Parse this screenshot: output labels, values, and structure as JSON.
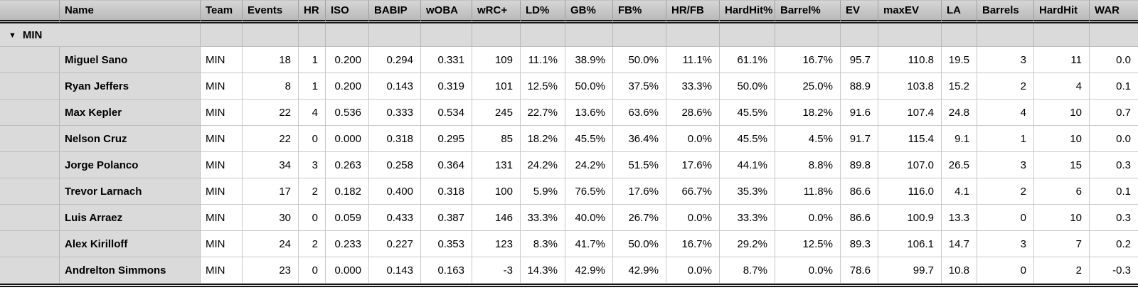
{
  "colors": {
    "header_gradient_top": "#d6d6d6",
    "header_gradient_bottom": "#b9b9b9",
    "row_header_bg": "#dadada",
    "grid_line": "#c8c8c8",
    "heavy_line": "#141414"
  },
  "table": {
    "columns": [
      "Name",
      "Team",
      "Events",
      "HR",
      "ISO",
      "BABIP",
      "wOBA",
      "wRC+",
      "LD%",
      "GB%",
      "FB%",
      "HR/FB",
      "HardHit%",
      "Barrel%",
      "EV",
      "maxEV",
      "LA",
      "Barrels",
      "HardHit",
      "WAR"
    ],
    "group": {
      "icon": "▼",
      "label": "MIN"
    },
    "rows": [
      {
        "name": "Miguel Sano",
        "team": "MIN",
        "values": [
          "18",
          "1",
          "0.200",
          "0.294",
          "0.331",
          "109",
          "11.1%",
          "38.9%",
          "50.0%",
          "11.1%",
          "61.1%",
          "16.7%",
          "95.7",
          "110.8",
          "19.5",
          "3",
          "11",
          "0.0"
        ]
      },
      {
        "name": "Ryan Jeffers",
        "team": "MIN",
        "values": [
          "8",
          "1",
          "0.200",
          "0.143",
          "0.319",
          "101",
          "12.5%",
          "50.0%",
          "37.5%",
          "33.3%",
          "50.0%",
          "25.0%",
          "88.9",
          "103.8",
          "15.2",
          "2",
          "4",
          "0.1"
        ]
      },
      {
        "name": "Max Kepler",
        "team": "MIN",
        "values": [
          "22",
          "4",
          "0.536",
          "0.333",
          "0.534",
          "245",
          "22.7%",
          "13.6%",
          "63.6%",
          "28.6%",
          "45.5%",
          "18.2%",
          "91.6",
          "107.4",
          "24.8",
          "4",
          "10",
          "0.7"
        ]
      },
      {
        "name": "Nelson Cruz",
        "team": "MIN",
        "values": [
          "22",
          "0",
          "0.000",
          "0.318",
          "0.295",
          "85",
          "18.2%",
          "45.5%",
          "36.4%",
          "0.0%",
          "45.5%",
          "4.5%",
          "91.7",
          "115.4",
          "9.1",
          "1",
          "10",
          "0.0"
        ]
      },
      {
        "name": "Jorge Polanco",
        "team": "MIN",
        "values": [
          "34",
          "3",
          "0.263",
          "0.258",
          "0.364",
          "131",
          "24.2%",
          "24.2%",
          "51.5%",
          "17.6%",
          "44.1%",
          "8.8%",
          "89.8",
          "107.0",
          "26.5",
          "3",
          "15",
          "0.3"
        ]
      },
      {
        "name": "Trevor Larnach",
        "team": "MIN",
        "values": [
          "17",
          "2",
          "0.182",
          "0.400",
          "0.318",
          "100",
          "5.9%",
          "76.5%",
          "17.6%",
          "66.7%",
          "35.3%",
          "11.8%",
          "86.6",
          "116.0",
          "4.1",
          "2",
          "6",
          "0.1"
        ]
      },
      {
        "name": "Luis Arraez",
        "team": "MIN",
        "values": [
          "30",
          "0",
          "0.059",
          "0.433",
          "0.387",
          "146",
          "33.3%",
          "40.0%",
          "26.7%",
          "0.0%",
          "33.3%",
          "0.0%",
          "86.6",
          "100.9",
          "13.3",
          "0",
          "10",
          "0.3"
        ]
      },
      {
        "name": "Alex Kirilloff",
        "team": "MIN",
        "values": [
          "24",
          "2",
          "0.233",
          "0.227",
          "0.353",
          "123",
          "8.3%",
          "41.7%",
          "50.0%",
          "16.7%",
          "29.2%",
          "12.5%",
          "89.3",
          "106.1",
          "14.7",
          "3",
          "7",
          "0.2"
        ]
      },
      {
        "name": "Andrelton Simmons",
        "team": "MIN",
        "values": [
          "23",
          "0",
          "0.000",
          "0.143",
          "0.163",
          "-3",
          "14.3%",
          "42.9%",
          "42.9%",
          "0.0%",
          "8.7%",
          "0.0%",
          "78.6",
          "99.7",
          "10.8",
          "0",
          "2",
          "-0.3"
        ]
      }
    ]
  }
}
